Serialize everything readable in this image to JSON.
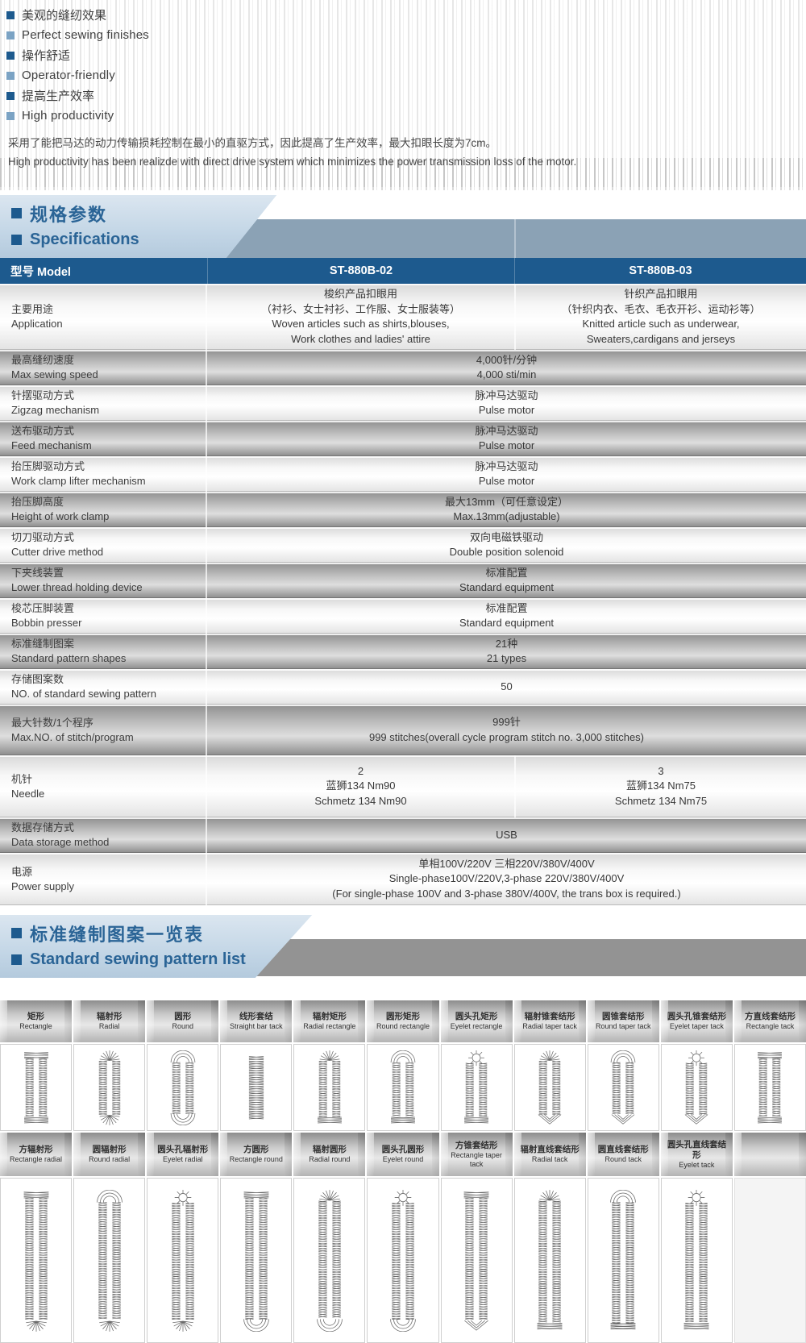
{
  "colors": {
    "blue_dark": "#1d5a8e",
    "blue_text": "#2a6496",
    "panel_blue": "#c3d6e6",
    "band_blue_gray": "#8ba2b5",
    "band_gray": "#939393"
  },
  "features": [
    {
      "zh": "美观的缝纫效果",
      "en": "Perfect sewing finishes"
    },
    {
      "zh": "操作舒适",
      "en": "Operator-friendly"
    },
    {
      "zh": "提高生产效率",
      "en": "High productivity"
    }
  ],
  "intro": {
    "zh": "采用了能把马达的动力传输损耗控制在最小的直驱方式，因此提高了生产效率，最大扣眼长度为7cm。",
    "en": "High productivity has been realizde with direct drive system which minimizes the power transmission loss of the motor."
  },
  "specs": {
    "title_zh": "规格参数",
    "title_en": "Specifications",
    "header": {
      "model_label": "型号 Model",
      "col1": "ST-880B-02",
      "col2": "ST-880B-03"
    },
    "rows": [
      {
        "zh": "主要用途",
        "en": "Application",
        "cells": [
          [
            "梭织产品扣眼用",
            "（衬衫、女士衬衫、工作服、女士服装等）",
            "Woven articles such as shirts,blouses,",
            "Work clothes and ladies' attire"
          ],
          [
            "针织产品扣眼用",
            "（针织内衣、毛衣、毛衣开衫、运动衫等）",
            "Knitted article such as underwear,",
            "Sweaters,cardigans and jerseys"
          ]
        ]
      },
      {
        "zh": "最高缝纫速度",
        "en": "Max sewing speed",
        "span": [
          "4,000针/分钟",
          "4,000 sti/min"
        ]
      },
      {
        "zh": "针摆驱动方式",
        "en": "Zigzag mechanism",
        "span": [
          "脉冲马达驱动",
          "Pulse motor"
        ]
      },
      {
        "zh": "送布驱动方式",
        "en": "Feed mechanism",
        "span": [
          "脉冲马达驱动",
          "Pulse motor"
        ]
      },
      {
        "zh": "抬压脚驱动方式",
        "en": "Work clamp lifter mechanism",
        "span": [
          "脉冲马达驱动",
          "Pulse motor"
        ]
      },
      {
        "zh": "抬压脚高度",
        "en": "Height of work clamp",
        "span": [
          "最大13mm（可任意设定）",
          "Max.13mm(adjustable)"
        ]
      },
      {
        "zh": "切刀驱动方式",
        "en": "Cutter drive method",
        "span": [
          "双向电磁铁驱动",
          "Double position solenoid"
        ]
      },
      {
        "zh": "下夹线装置",
        "en": "Lower thread holding device",
        "span": [
          "标准配置",
          "Standard equipment"
        ]
      },
      {
        "zh": "梭芯压脚装置",
        "en": "Bobbin presser",
        "span": [
          "标准配置",
          "Standard equipment"
        ]
      },
      {
        "zh": "标准缝制图案",
        "en": "Standard pattern shapes",
        "span": [
          "21种",
          "21 types"
        ]
      },
      {
        "zh": "存储图案数",
        "en": "NO. of standard sewing pattern",
        "span": [
          "50"
        ]
      },
      {
        "zh": "最大针数/1个程序",
        "en": "Max.NO. of stitch/program",
        "span": [
          "999针",
          "999 stitches(overall cycle program stitch no. 3,000 stitches)"
        ]
      },
      {
        "zh": "机针",
        "en": "Needle",
        "cells": [
          [
            "2",
            "蓝狮134 Nm90",
            "Schmetz 134 Nm90"
          ],
          [
            "3",
            "蓝狮134 Nm75",
            "Schmetz 134 Nm75"
          ]
        ]
      },
      {
        "zh": "数据存储方式",
        "en": "Data storage method",
        "span": [
          "USB"
        ]
      },
      {
        "zh": "电源",
        "en": "Power supply",
        "span": [
          "单相100V/220V 三相220V/380V/400V",
          "Single-phase100V/220V,3-phase 220V/380V/400V",
          "(For single-phase 100V and 3-phase 380V/400V, the trans box is required.)"
        ]
      }
    ]
  },
  "patterns": {
    "title_zh": "标准缝制图案一览表",
    "title_en": "Standard sewing pattern list",
    "row1": [
      {
        "zh": "矩形",
        "en": "Rectangle",
        "top": "bar",
        "bottom": "bar"
      },
      {
        "zh": "辐射形",
        "en": "Radial",
        "top": "fan",
        "bottom": "fan"
      },
      {
        "zh": "圆形",
        "en": "Round",
        "top": "arch",
        "bottom": "arch"
      },
      {
        "zh": "线形套结",
        "en": "Straight bar tack",
        "style": "bar"
      },
      {
        "zh": "辐射矩形",
        "en": "Radial rectangle",
        "top": "fan",
        "bottom": "bar"
      },
      {
        "zh": "圆形矩形",
        "en": "Round rectangle",
        "top": "arch",
        "bottom": "bar"
      },
      {
        "zh": "圆头孔矩形",
        "en": "Eyelet rectangle",
        "top": "eyelet",
        "bottom": "bar"
      },
      {
        "zh": "辐射锥套结形",
        "en": "Radial taper tack",
        "top": "fan",
        "bottom": "taper"
      },
      {
        "zh": "圆锥套结形",
        "en": "Round taper tack",
        "top": "arch",
        "bottom": "taper"
      },
      {
        "zh": "圆头孔锥套结形",
        "en": "Eyelet taper tack",
        "top": "eyelet",
        "bottom": "taper"
      },
      {
        "zh": "方直线套结形",
        "en": "Rectangle tack",
        "top": "bar",
        "bottom": "bar"
      }
    ],
    "row2": [
      {
        "zh": "方辐射形",
        "en": "Rectangle radial",
        "top": "bar",
        "bottom": "fan"
      },
      {
        "zh": "圆辐射形",
        "en": "Round radial",
        "top": "arch",
        "bottom": "fan"
      },
      {
        "zh": "圆头孔辐射形",
        "en": "Eyelet radial",
        "top": "eyelet",
        "bottom": "fan"
      },
      {
        "zh": "方圆形",
        "en": "Rectangle round",
        "top": "bar",
        "bottom": "arch"
      },
      {
        "zh": "辐射圆形",
        "en": "Radial round",
        "top": "fan",
        "bottom": "arch"
      },
      {
        "zh": "圆头孔圆形",
        "en": "Eyelet round",
        "top": "eyelet",
        "bottom": "arch"
      },
      {
        "zh": "方锥套结形",
        "en": "Rectangle taper tack",
        "top": "bar",
        "bottom": "taper"
      },
      {
        "zh": "辐射直线套结形",
        "en": "Radial tack",
        "top": "fan",
        "bottom": "bar"
      },
      {
        "zh": "圆直线套结形",
        "en": "Round tack",
        "top": "arch",
        "bottom": "bar"
      },
      {
        "zh": "圆头孔直线套结形",
        "en": "Eyelet tack",
        "top": "eyelet",
        "bottom": "bar"
      }
    ]
  }
}
